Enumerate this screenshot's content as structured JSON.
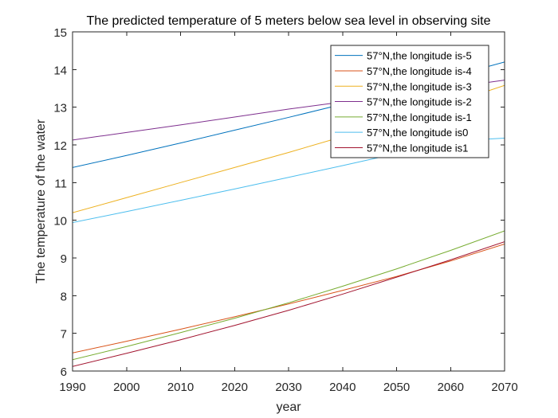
{
  "chart_data": {
    "type": "line",
    "title": "The predicted temperature of 5 meters below sea level in observing site",
    "xlabel": "year",
    "ylabel": "The temperature of the water",
    "xlim": [
      1990,
      2070
    ],
    "ylim": [
      6,
      15
    ],
    "xticks": [
      1990,
      2000,
      2010,
      2020,
      2030,
      2040,
      2050,
      2060,
      2070
    ],
    "yticks": [
      6,
      7,
      8,
      9,
      10,
      11,
      12,
      13,
      14,
      15
    ],
    "grid": false,
    "legend_position": "top-right",
    "x": [
      1990,
      2000,
      2010,
      2020,
      2030,
      2040,
      2050,
      2060,
      2070
    ],
    "series": [
      {
        "name": "57°N,the longitude is-5",
        "color": "#0072BD",
        "values": [
          11.4,
          11.72,
          12.05,
          12.39,
          12.73,
          13.08,
          13.44,
          13.81,
          14.2
        ]
      },
      {
        "name": "57°N,the longitude is-4",
        "color": "#D95319",
        "values": [
          6.48,
          6.79,
          7.11,
          7.44,
          7.78,
          8.14,
          8.51,
          8.92,
          9.37
        ]
      },
      {
        "name": "57°N,the longitude is-3",
        "color": "#EDB120",
        "values": [
          10.2,
          10.6,
          11.0,
          11.4,
          11.8,
          12.22,
          12.65,
          13.1,
          13.58
        ]
      },
      {
        "name": "57°N,the longitude is-2",
        "color": "#7E2F8E",
        "values": [
          12.13,
          12.33,
          12.53,
          12.74,
          12.95,
          13.14,
          13.33,
          13.52,
          13.72
        ]
      },
      {
        "name": "57°N,the longitude is-1",
        "color": "#77AC30",
        "values": [
          6.3,
          6.65,
          7.02,
          7.4,
          7.81,
          8.25,
          8.71,
          9.2,
          9.72
        ]
      },
      {
        "name": "57°N,the longitude is0",
        "color": "#4DBEEE",
        "values": [
          9.94,
          10.23,
          10.53,
          10.83,
          11.14,
          11.45,
          11.77,
          12.1,
          12.18
        ]
      },
      {
        "name": "57°N,the longitude is1",
        "color": "#A2142F",
        "values": [
          6.12,
          6.47,
          6.83,
          7.21,
          7.61,
          8.04,
          8.49,
          8.95,
          9.43
        ]
      }
    ]
  }
}
